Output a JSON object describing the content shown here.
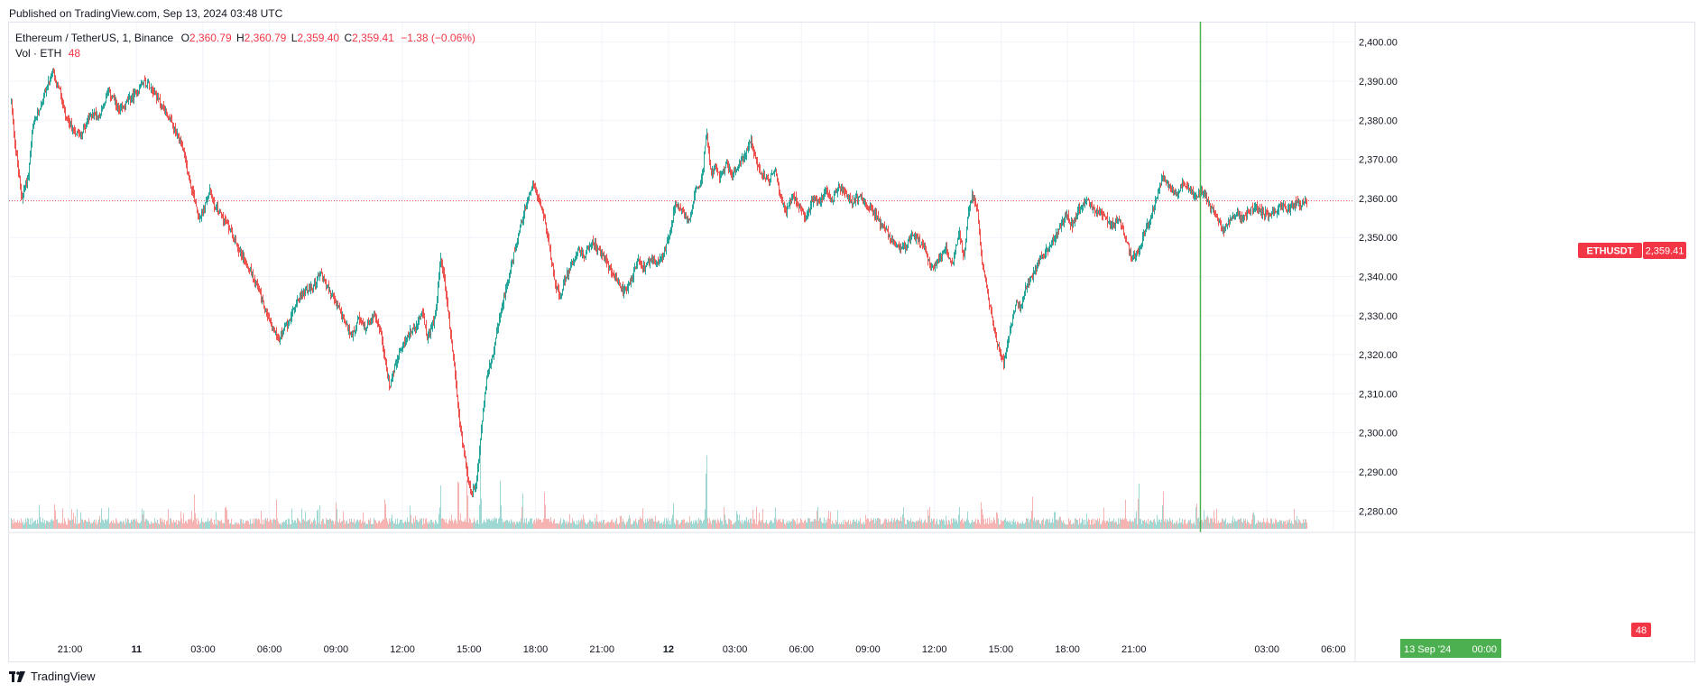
{
  "header": {
    "published": "Published on TradingView.com, Sep 13, 2024 03:48 UTC"
  },
  "legend": {
    "symbol": "Ethereum / TetherUS, 1, Binance",
    "o_label": "O",
    "o": "2,360.79",
    "h_label": "H",
    "h": "2,360.79",
    "l_label": "L",
    "l": "2,359.40",
    "c_label": "C",
    "c": "2,359.41",
    "change": "−1.38 (−0.06%)",
    "vol_label": "Vol · ETH",
    "vol_value": "48"
  },
  "badges": {
    "price_symbol": "ETHUSDT",
    "price_value": "2,359.41",
    "volume_value": "48",
    "cursor_date": "13 Sep '24",
    "cursor_time": "00:00"
  },
  "colors": {
    "up": "#26a69a",
    "down": "#ef5350",
    "cursor": "#4caf50",
    "grid": "#f0f3fa",
    "text": "#131722"
  },
  "footer": {
    "brand": "TradingView"
  },
  "chart_data": {
    "type": "candlestick",
    "symbol": "ETHUSDT",
    "interval_minutes": 1,
    "last_price": 2359.41,
    "ylim": [
      2275,
      2405
    ],
    "y_ticks": [
      {
        "value": 2280,
        "label": "2,280.00"
      },
      {
        "value": 2290,
        "label": "2,290.00"
      },
      {
        "value": 2300,
        "label": "2,300.00"
      },
      {
        "value": 2310,
        "label": "2,310.00"
      },
      {
        "value": 2320,
        "label": "2,320.00"
      },
      {
        "value": 2330,
        "label": "2,330.00"
      },
      {
        "value": 2340,
        "label": "2,340.00"
      },
      {
        "value": 2350,
        "label": "2,350.00"
      },
      {
        "value": 2360,
        "label": "2,360.00"
      },
      {
        "value": 2370,
        "label": "2,370.00"
      },
      {
        "value": 2380,
        "label": "2,380.00"
      },
      {
        "value": 2390,
        "label": "2,390.00"
      },
      {
        "value": 2400,
        "label": "2,400.00"
      }
    ],
    "x_ticks": [
      {
        "hours": 21,
        "label": "21:00",
        "bold": false
      },
      {
        "hours": 24,
        "label": "11",
        "bold": true
      },
      {
        "hours": 27,
        "label": "03:00",
        "bold": false
      },
      {
        "hours": 30,
        "label": "06:00",
        "bold": false
      },
      {
        "hours": 33,
        "label": "09:00",
        "bold": false
      },
      {
        "hours": 36,
        "label": "12:00",
        "bold": false
      },
      {
        "hours": 39,
        "label": "15:00",
        "bold": false
      },
      {
        "hours": 42,
        "label": "18:00",
        "bold": false
      },
      {
        "hours": 45,
        "label": "21:00",
        "bold": false
      },
      {
        "hours": 48,
        "label": "12",
        "bold": true
      },
      {
        "hours": 51,
        "label": "03:00",
        "bold": false
      },
      {
        "hours": 54,
        "label": "06:00",
        "bold": false
      },
      {
        "hours": 57,
        "label": "09:00",
        "bold": false
      },
      {
        "hours": 60,
        "label": "12:00",
        "bold": false
      },
      {
        "hours": 63,
        "label": "15:00",
        "bold": false
      },
      {
        "hours": 66,
        "label": "18:00",
        "bold": false
      },
      {
        "hours": 69,
        "label": "21:00",
        "bold": false
      },
      {
        "hours": 75,
        "label": "03:00",
        "bold": false
      },
      {
        "hours": 78,
        "label": "06:00",
        "bold": false
      }
    ],
    "xlim_hours": [
      18.25,
      78.9
    ],
    "cursor_hours": 72,
    "data_end_hours": 76.8,
    "price_path": [
      [
        18.3,
        2387
      ],
      [
        18.5,
        2374
      ],
      [
        18.8,
        2360
      ],
      [
        19.1,
        2366
      ],
      [
        19.3,
        2378
      ],
      [
        19.6,
        2383
      ],
      [
        19.9,
        2388
      ],
      [
        20.2,
        2392
      ],
      [
        20.5,
        2388
      ],
      [
        20.8,
        2380
      ],
      [
        21.1,
        2378
      ],
      [
        21.4,
        2376
      ],
      [
        21.7,
        2379
      ],
      [
        22.0,
        2382
      ],
      [
        22.3,
        2381
      ],
      [
        22.7,
        2387
      ],
      [
        22.9,
        2386
      ],
      [
        23.2,
        2382
      ],
      [
        23.6,
        2385
      ],
      [
        24.0,
        2387
      ],
      [
        24.3,
        2390
      ],
      [
        24.6,
        2389
      ],
      [
        24.9,
        2386
      ],
      [
        25.2,
        2383
      ],
      [
        25.5,
        2380
      ],
      [
        25.8,
        2376
      ],
      [
        26.0,
        2374
      ],
      [
        26.2,
        2369
      ],
      [
        26.4,
        2364
      ],
      [
        26.6,
        2360
      ],
      [
        26.8,
        2355
      ],
      [
        27.0,
        2357
      ],
      [
        27.3,
        2362
      ],
      [
        27.5,
        2358
      ],
      [
        27.8,
        2356
      ],
      [
        28.2,
        2352
      ],
      [
        28.6,
        2347
      ],
      [
        29.0,
        2343
      ],
      [
        29.4,
        2338
      ],
      [
        29.7,
        2333
      ],
      [
        30.1,
        2327
      ],
      [
        30.4,
        2324
      ],
      [
        30.8,
        2328
      ],
      [
        31.1,
        2332
      ],
      [
        31.5,
        2336
      ],
      [
        31.9,
        2337
      ],
      [
        32.3,
        2341
      ],
      [
        32.7,
        2336
      ],
      [
        33.0,
        2333
      ],
      [
        33.4,
        2328
      ],
      [
        33.7,
        2325
      ],
      [
        34.0,
        2329
      ],
      [
        34.3,
        2327
      ],
      [
        34.7,
        2330
      ],
      [
        35.0,
        2326
      ],
      [
        35.2,
        2318
      ],
      [
        35.4,
        2312
      ],
      [
        35.7,
        2318
      ],
      [
        36.0,
        2322
      ],
      [
        36.3,
        2326
      ],
      [
        36.6,
        2327
      ],
      [
        36.9,
        2331
      ],
      [
        37.1,
        2324
      ],
      [
        37.3,
        2327
      ],
      [
        37.5,
        2331
      ],
      [
        37.7,
        2345
      ],
      [
        37.9,
        2338
      ],
      [
        38.1,
        2328
      ],
      [
        38.3,
        2318
      ],
      [
        38.5,
        2306
      ],
      [
        38.7,
        2297
      ],
      [
        38.9,
        2289
      ],
      [
        39.1,
        2284
      ],
      [
        39.3,
        2287
      ],
      [
        39.5,
        2298
      ],
      [
        39.7,
        2310
      ],
      [
        39.9,
        2318
      ],
      [
        40.1,
        2320
      ],
      [
        40.3,
        2328
      ],
      [
        40.5,
        2333
      ],
      [
        40.7,
        2338
      ],
      [
        40.9,
        2343
      ],
      [
        41.1,
        2348
      ],
      [
        41.3,
        2353
      ],
      [
        41.5,
        2357
      ],
      [
        41.7,
        2361
      ],
      [
        41.9,
        2364
      ],
      [
        42.1,
        2360
      ],
      [
        42.3,
        2357
      ],
      [
        42.5,
        2352
      ],
      [
        42.7,
        2344
      ],
      [
        42.9,
        2338
      ],
      [
        43.1,
        2334
      ],
      [
        43.3,
        2339
      ],
      [
        43.6,
        2343
      ],
      [
        43.9,
        2347
      ],
      [
        44.2,
        2345
      ],
      [
        44.5,
        2349
      ],
      [
        44.8,
        2347
      ],
      [
        45.1,
        2345
      ],
      [
        45.4,
        2341
      ],
      [
        45.7,
        2338
      ],
      [
        46.0,
        2336
      ],
      [
        46.3,
        2339
      ],
      [
        46.6,
        2344
      ],
      [
        46.9,
        2342
      ],
      [
        47.2,
        2345
      ],
      [
        47.5,
        2343
      ],
      [
        47.8,
        2346
      ],
      [
        48.1,
        2353
      ],
      [
        48.3,
        2359
      ],
      [
        48.6,
        2357
      ],
      [
        48.9,
        2354
      ],
      [
        49.2,
        2362
      ],
      [
        49.5,
        2365
      ],
      [
        49.7,
        2377
      ],
      [
        49.9,
        2366
      ],
      [
        50.1,
        2368
      ],
      [
        50.3,
        2365
      ],
      [
        50.6,
        2369
      ],
      [
        50.9,
        2366
      ],
      [
        51.2,
        2369
      ],
      [
        51.5,
        2372
      ],
      [
        51.7,
        2375
      ],
      [
        51.9,
        2370
      ],
      [
        52.2,
        2366
      ],
      [
        52.5,
        2364
      ],
      [
        52.8,
        2368
      ],
      [
        53.0,
        2361
      ],
      [
        53.3,
        2357
      ],
      [
        53.6,
        2361
      ],
      [
        53.9,
        2358
      ],
      [
        54.2,
        2355
      ],
      [
        54.5,
        2360
      ],
      [
        54.8,
        2359
      ],
      [
        55.1,
        2362
      ],
      [
        55.4,
        2360
      ],
      [
        55.7,
        2363
      ],
      [
        56.0,
        2361
      ],
      [
        56.3,
        2359
      ],
      [
        56.6,
        2361
      ],
      [
        56.9,
        2358
      ],
      [
        57.2,
        2357
      ],
      [
        57.5,
        2354
      ],
      [
        57.8,
        2352
      ],
      [
        58.1,
        2349
      ],
      [
        58.4,
        2347
      ],
      [
        58.7,
        2348
      ],
      [
        59.0,
        2351
      ],
      [
        59.3,
        2349
      ],
      [
        59.6,
        2346
      ],
      [
        59.9,
        2342
      ],
      [
        60.2,
        2345
      ],
      [
        60.5,
        2347
      ],
      [
        60.8,
        2343
      ],
      [
        61.1,
        2352
      ],
      [
        61.3,
        2344
      ],
      [
        61.5,
        2356
      ],
      [
        61.7,
        2361
      ],
      [
        61.9,
        2358
      ],
      [
        62.1,
        2345
      ],
      [
        62.3,
        2338
      ],
      [
        62.5,
        2332
      ],
      [
        62.7,
        2326
      ],
      [
        62.9,
        2321
      ],
      [
        63.1,
        2318
      ],
      [
        63.3,
        2324
      ],
      [
        63.5,
        2329
      ],
      [
        63.7,
        2334
      ],
      [
        63.9,
        2332
      ],
      [
        64.1,
        2337
      ],
      [
        64.4,
        2340
      ],
      [
        64.7,
        2344
      ],
      [
        65.0,
        2346
      ],
      [
        65.3,
        2349
      ],
      [
        65.6,
        2352
      ],
      [
        65.9,
        2356
      ],
      [
        66.2,
        2353
      ],
      [
        66.5,
        2357
      ],
      [
        66.8,
        2360
      ],
      [
        67.1,
        2358
      ],
      [
        67.4,
        2356
      ],
      [
        67.7,
        2355
      ],
      [
        68.0,
        2353
      ],
      [
        68.3,
        2355
      ],
      [
        68.6,
        2350
      ],
      [
        68.9,
        2344
      ],
      [
        69.2,
        2347
      ],
      [
        69.5,
        2352
      ],
      [
        69.8,
        2356
      ],
      [
        70.1,
        2362
      ],
      [
        70.3,
        2366
      ],
      [
        70.6,
        2363
      ],
      [
        70.9,
        2361
      ],
      [
        71.2,
        2364
      ],
      [
        71.5,
        2362
      ],
      [
        71.8,
        2360
      ],
      [
        72.1,
        2362
      ],
      [
        72.4,
        2358
      ],
      [
        72.7,
        2356
      ],
      [
        73.0,
        2352
      ],
      [
        73.3,
        2354
      ],
      [
        73.6,
        2356
      ],
      [
        73.9,
        2355
      ],
      [
        74.2,
        2357
      ],
      [
        74.5,
        2358
      ],
      [
        74.8,
        2356
      ],
      [
        75.1,
        2356
      ],
      [
        75.4,
        2357
      ],
      [
        75.7,
        2358
      ],
      [
        76.0,
        2357
      ],
      [
        76.3,
        2359
      ],
      [
        76.6,
        2358
      ],
      [
        76.8,
        2359.41
      ]
    ],
    "volume_spikes": [
      [
        19.6,
        10
      ],
      [
        20.3,
        12
      ],
      [
        24.3,
        9
      ],
      [
        26.6,
        14
      ],
      [
        28.0,
        12
      ],
      [
        30.3,
        11
      ],
      [
        33.0,
        13
      ],
      [
        35.2,
        15
      ],
      [
        37.7,
        18
      ],
      [
        38.5,
        26
      ],
      [
        38.9,
        23
      ],
      [
        39.5,
        31
      ],
      [
        40.4,
        20
      ],
      [
        41.4,
        16
      ],
      [
        42.4,
        17
      ],
      [
        48.2,
        11
      ],
      [
        49.7,
        36
      ],
      [
        50.5,
        10
      ],
      [
        52.8,
        9
      ],
      [
        55.2,
        8
      ],
      [
        59.7,
        9
      ],
      [
        61.1,
        10
      ],
      [
        62.1,
        12
      ],
      [
        62.8,
        9
      ],
      [
        64.4,
        14
      ],
      [
        65.4,
        8
      ],
      [
        68.6,
        11
      ],
      [
        69.2,
        21
      ],
      [
        70.3,
        17
      ],
      [
        71.8,
        13
      ],
      [
        72.6,
        8
      ]
    ],
    "volume_max": 40
  }
}
